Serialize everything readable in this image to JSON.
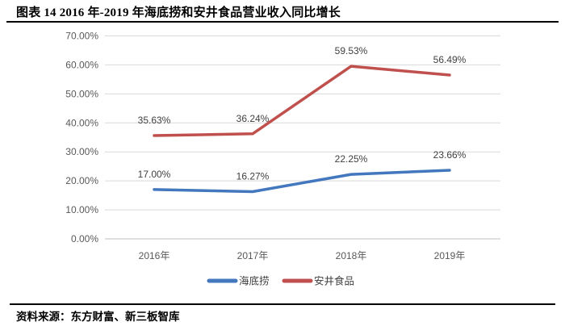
{
  "figure": {
    "title": "图表 14 2016 年-2019 年海底捞和安井食品营业收入同比增长",
    "source": "资料来源：东方财富、新三板智库"
  },
  "chart_data": {
    "type": "line",
    "title": "2016年-2019年海底捞和安井食品营业收入同比增长",
    "categories": [
      "2016年",
      "2017年",
      "2018年",
      "2019年"
    ],
    "series": [
      {
        "name": "海底捞",
        "color": "#4377BE",
        "values": [
          17.0,
          16.27,
          22.25,
          23.66
        ],
        "point_labels": [
          "17.00%",
          "16.27%",
          "22.25%",
          "23.66%"
        ]
      },
      {
        "name": "安井食品",
        "color": "#C0504D",
        "values": [
          35.63,
          36.24,
          59.53,
          56.49
        ],
        "point_labels": [
          "35.63%",
          "36.24%",
          "59.53%",
          "56.49%"
        ]
      }
    ],
    "xlabel": "",
    "ylabel": "",
    "ylim": [
      0,
      70
    ],
    "y_ticks": [
      {
        "value": 0,
        "label": "0.00%"
      },
      {
        "value": 10,
        "label": "10.00%"
      },
      {
        "value": 20,
        "label": "20.00%"
      },
      {
        "value": 30,
        "label": "30.00%"
      },
      {
        "value": 40,
        "label": "40.00%"
      },
      {
        "value": 50,
        "label": "50.00%"
      },
      {
        "value": 60,
        "label": "60.00%"
      },
      {
        "value": 70,
        "label": "70.00%"
      }
    ],
    "grid": true,
    "legend_position": "bottom"
  },
  "colors": {
    "gridline": "#D9D9D9",
    "axis_line": "#BFBFBF",
    "tick_text": "#595959",
    "data_label_text": "#404040",
    "rule": "#000000"
  }
}
